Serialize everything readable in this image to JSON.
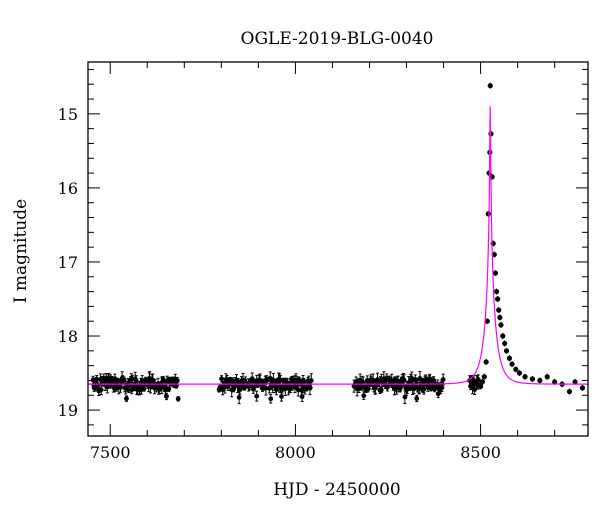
{
  "chart_data": {
    "type": "scatter",
    "title": "OGLE-2019-BLG-0040",
    "xlabel": "HJD - 2450000",
    "ylabel": "I magnitude",
    "xlim": [
      7440,
      8790
    ],
    "ylim": [
      19.35,
      14.3
    ],
    "y_inverted": true,
    "grid": false,
    "xticks": [
      {
        "value": 7500,
        "label": "7500"
      },
      {
        "value": 8000,
        "label": "8000"
      },
      {
        "value": 8500,
        "label": "8500"
      }
    ],
    "yticks": [
      {
        "value": 15,
        "label": "15"
      },
      {
        "value": 16,
        "label": "16"
      },
      {
        "value": 17,
        "label": "17"
      },
      {
        "value": 18,
        "label": "18"
      },
      {
        "value": 19,
        "label": "19"
      }
    ],
    "baseline_magnitude": 18.65,
    "observing_seasons": [
      {
        "start": 7452,
        "end": 7685
      },
      {
        "start": 7792,
        "end": 8043
      },
      {
        "start": 8158,
        "end": 8400
      },
      {
        "start": 8470,
        "end": 8765
      }
    ],
    "series": [
      {
        "kind": "points",
        "color": "#000000",
        "points": [
          {
            "x": 8500,
            "y": 18.68
          },
          {
            "x": 8505,
            "y": 18.62
          },
          {
            "x": 8510,
            "y": 18.55
          },
          {
            "x": 8515,
            "y": 18.35
          },
          {
            "x": 8518,
            "y": 17.8
          },
          {
            "x": 8521,
            "y": 16.35
          },
          {
            "x": 8523,
            "y": 15.8
          },
          {
            "x": 8525,
            "y": 15.52
          },
          {
            "x": 8526,
            "y": 14.62
          },
          {
            "x": 8528,
            "y": 15.27
          },
          {
            "x": 8531,
            "y": 15.85
          },
          {
            "x": 8534,
            "y": 16.75
          },
          {
            "x": 8537,
            "y": 16.9
          },
          {
            "x": 8540,
            "y": 17.15
          },
          {
            "x": 8543,
            "y": 17.4
          },
          {
            "x": 8546,
            "y": 17.5
          },
          {
            "x": 8549,
            "y": 17.65
          },
          {
            "x": 8552,
            "y": 17.75
          },
          {
            "x": 8555,
            "y": 17.85
          },
          {
            "x": 8560,
            "y": 18.0
          },
          {
            "x": 8565,
            "y": 18.1
          },
          {
            "x": 8570,
            "y": 18.2
          },
          {
            "x": 8578,
            "y": 18.3
          },
          {
            "x": 8585,
            "y": 18.38
          },
          {
            "x": 8595,
            "y": 18.45
          },
          {
            "x": 8605,
            "y": 18.5
          },
          {
            "x": 8620,
            "y": 18.55
          },
          {
            "x": 8640,
            "y": 18.58
          },
          {
            "x": 8660,
            "y": 18.6
          },
          {
            "x": 8680,
            "y": 18.55
          },
          {
            "x": 8700,
            "y": 18.62
          },
          {
            "x": 8720,
            "y": 18.65
          },
          {
            "x": 8740,
            "y": 18.75
          },
          {
            "x": 8755,
            "y": 18.62
          },
          {
            "x": 8775,
            "y": 18.7
          }
        ]
      },
      {
        "kind": "model-curve",
        "color": "#ff00ff",
        "peak_time": 8526,
        "peak_magnitude": 14.9,
        "baseline_magnitude": 18.65
      }
    ]
  }
}
